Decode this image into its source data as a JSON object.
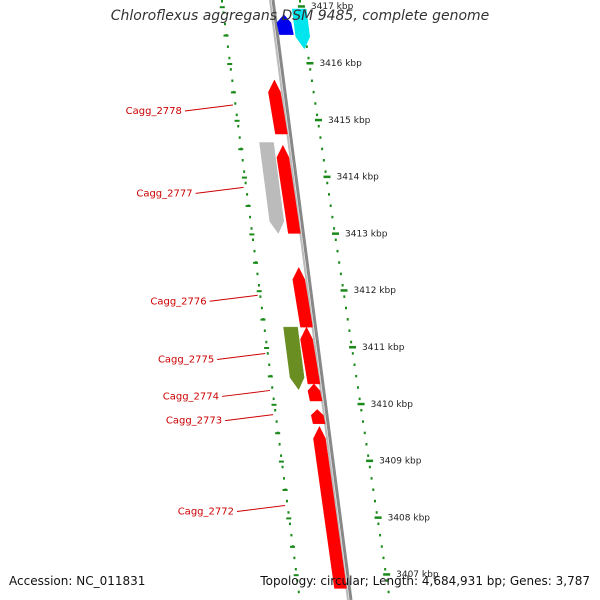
{
  "title": "Chloroflexus aggregans DSM 9485, complete genome",
  "footer": {
    "accession": "Accession: NC_011831",
    "genome_info": "Topology: circular; Length: 4,684,931 bp; Genes: 3,787"
  },
  "scale": {
    "ticks": [
      {
        "label": "3417 kbp",
        "kbp": 3417
      },
      {
        "label": "3416 kbp",
        "kbp": 3416
      },
      {
        "label": "3415 kbp",
        "kbp": 3415
      },
      {
        "label": "3414 kbp",
        "kbp": 3414
      },
      {
        "label": "3413 kbp",
        "kbp": 3413
      },
      {
        "label": "3412 kbp",
        "kbp": 3412
      },
      {
        "label": "3411 kbp",
        "kbp": 3411
      },
      {
        "label": "3410 kbp",
        "kbp": 3410
      },
      {
        "label": "3409 kbp",
        "kbp": 3409
      },
      {
        "label": "3408 kbp",
        "kbp": 3408
      },
      {
        "label": "3407 kbp",
        "kbp": 3407
      }
    ]
  },
  "genes": [
    {
      "id": "g1",
      "label": "",
      "start_kbp": 3416.85,
      "end_kbp": 3416.5,
      "strand": "reverse",
      "track": "mid",
      "color": "#0000ee"
    },
    {
      "id": "g2",
      "label": "",
      "start_kbp": 3416.95,
      "end_kbp": 3416.25,
      "strand": "forward",
      "track": "right",
      "color": "#00e5ee"
    },
    {
      "id": "g3",
      "label": "Cagg_2778",
      "start_kbp": 3414.75,
      "end_kbp": 3415.7,
      "strand": "reverse",
      "track": "left",
      "color": "#ff0000"
    },
    {
      "id": "g4",
      "label": "Cagg_2777",
      "start_kbp": 3413.0,
      "end_kbp": 3414.55,
      "strand": "reverse",
      "track": "left",
      "color": "#ff0000"
    },
    {
      "id": "g5",
      "label": "",
      "start_kbp": 3413.0,
      "end_kbp": 3414.6,
      "strand": "forward",
      "track": "outer",
      "color": "#bbbbbb"
    },
    {
      "id": "g6",
      "label": "Cagg_2776",
      "start_kbp": 3411.35,
      "end_kbp": 3412.4,
      "strand": "reverse",
      "track": "left",
      "color": "#ff0000"
    },
    {
      "id": "g7",
      "label": "Cagg_2775",
      "start_kbp": 3410.35,
      "end_kbp": 3411.35,
      "strand": "reverse",
      "track": "left",
      "color": "#ff0000"
    },
    {
      "id": "g8",
      "label": "",
      "start_kbp": 3410.25,
      "end_kbp": 3411.35,
      "strand": "forward",
      "track": "outer",
      "color": "#6b8e23"
    },
    {
      "id": "g9",
      "label": "Cagg_2774",
      "start_kbp": 3410.05,
      "end_kbp": 3410.35,
      "strand": "reverse",
      "track": "left",
      "color": "#ff0000"
    },
    {
      "id": "g10",
      "label": "Cagg_2773",
      "start_kbp": 3409.65,
      "end_kbp": 3409.9,
      "strand": "reverse",
      "track": "left",
      "color": "#ff0000"
    },
    {
      "id": "g11",
      "label": "Cagg_2772",
      "start_kbp": 3406.75,
      "end_kbp": 3409.6,
      "strand": "reverse",
      "track": "left",
      "color": "#ff0000"
    }
  ],
  "colors": {
    "backbone": "#888888",
    "scale_ticks": "#1a8a1a",
    "gene_label": "#cc0000"
  }
}
